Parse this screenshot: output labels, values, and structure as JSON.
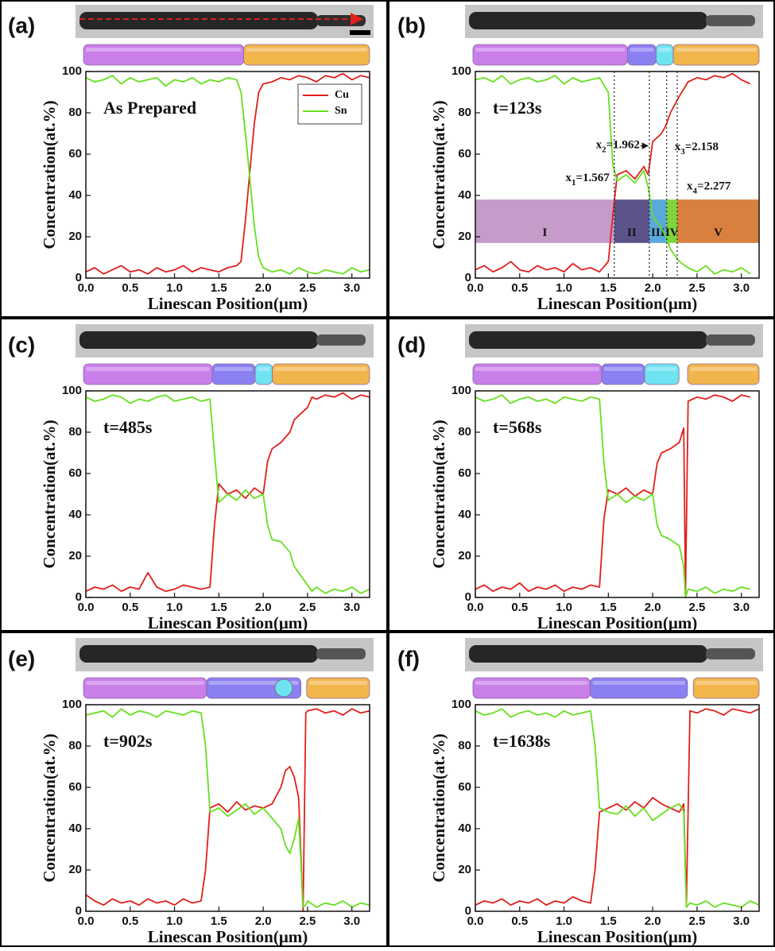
{
  "chart_data": [
    {
      "type": "line",
      "panel_label": "(a)",
      "annotation": "As Prepared",
      "xlabel": "Linescan Position(μm)",
      "ylabel": "Concentration(at.%)",
      "xlim": [
        0,
        3.2
      ],
      "ylim": [
        0,
        100
      ],
      "xticks": [
        {
          "value": 0,
          "label": "0.0"
        },
        0.5,
        {
          "value": 1,
          "label": "1.0"
        },
        1.5,
        {
          "value": 2,
          "label": "2.0"
        },
        2.5,
        {
          "value": 3,
          "label": "3.0"
        }
      ],
      "yticks": [
        0,
        20,
        40,
        60,
        80,
        100
      ],
      "legend": "upper right",
      "x": [
        0,
        0.1,
        0.2,
        0.3,
        0.4,
        0.5,
        0.6,
        0.7,
        0.8,
        0.9,
        1.0,
        1.1,
        1.2,
        1.3,
        1.4,
        1.5,
        1.6,
        1.7,
        1.75,
        1.8,
        1.85,
        1.9,
        1.95,
        2.0,
        2.1,
        2.2,
        2.3,
        2.4,
        2.5,
        2.6,
        2.7,
        2.8,
        2.9,
        3.0,
        3.1,
        3.2
      ],
      "series": [
        {
          "name": "Cu",
          "color": "#e0201b",
          "values": [
            3,
            5,
            2,
            4,
            6,
            3,
            4,
            2,
            5,
            3,
            4,
            6,
            3,
            5,
            4,
            3,
            5,
            6,
            8,
            28,
            52,
            75,
            90,
            94,
            95,
            97,
            96,
            98,
            97,
            95,
            98,
            97,
            99,
            96,
            98,
            97
          ]
        },
        {
          "name": "Sn",
          "color": "#66e01f",
          "values": [
            97,
            95,
            96,
            98,
            94,
            97,
            95,
            96,
            97,
            93,
            96,
            95,
            97,
            94,
            96,
            95,
            97,
            96,
            90,
            70,
            48,
            25,
            10,
            5,
            3,
            4,
            2,
            5,
            3,
            2,
            4,
            3,
            2,
            5,
            3,
            4
          ]
        }
      ]
    },
    {
      "type": "line",
      "panel_label": "(b)",
      "annotation": "t=123s",
      "xlabel": "Linescan Position(μm)",
      "ylabel": "Concentration(at.%)",
      "xlim": [
        0,
        3.2
      ],
      "ylim": [
        0,
        100
      ],
      "xticks": [
        {
          "value": 0,
          "label": "0.0"
        },
        0.5,
        {
          "value": 1,
          "label": "1.0"
        },
        1.5,
        {
          "value": 2,
          "label": "2.0"
        },
        2.5,
        {
          "value": 3,
          "label": "3.0"
        }
      ],
      "yticks": [
        0,
        20,
        40,
        60,
        80,
        100
      ],
      "x": [
        0,
        0.1,
        0.2,
        0.3,
        0.4,
        0.5,
        0.6,
        0.7,
        0.8,
        0.9,
        1.0,
        1.1,
        1.2,
        1.3,
        1.4,
        1.5,
        1.55,
        1.6,
        1.7,
        1.8,
        1.9,
        1.95,
        2.0,
        2.1,
        2.15,
        2.2,
        2.3,
        2.4,
        2.5,
        2.6,
        2.7,
        2.8,
        2.9,
        3.0,
        3.1
      ],
      "series": [
        {
          "color": "#e0201b",
          "values": [
            4,
            6,
            3,
            5,
            8,
            4,
            3,
            6,
            4,
            5,
            3,
            7,
            4,
            5,
            3,
            8,
            30,
            50,
            52,
            48,
            54,
            50,
            66,
            70,
            74,
            80,
            88,
            95,
            97,
            96,
            98,
            97,
            99,
            96,
            94
          ]
        },
        {
          "color": "#66e01f",
          "values": [
            96,
            97,
            95,
            98,
            94,
            96,
            97,
            95,
            96,
            98,
            94,
            97,
            95,
            96,
            97,
            90,
            55,
            47,
            50,
            46,
            52,
            44,
            30,
            24,
            20,
            14,
            8,
            5,
            3,
            6,
            2,
            4,
            3,
            5,
            2
          ]
        }
      ],
      "markers": [
        {
          "label": "x",
          "sub": "1",
          "value_label": "=1.567",
          "value": 1.567
        },
        {
          "label": "x",
          "sub": "2",
          "value_label": "=1.962",
          "value": 1.962
        },
        {
          "label": "x",
          "sub": "3",
          "value_label": "=2.158",
          "value": 2.158
        },
        {
          "label": "x",
          "sub": "4",
          "value_label": "=2.277",
          "value": 2.277
        }
      ],
      "regions": [
        {
          "label": "I",
          "color": "#c49bc9",
          "start": 0,
          "end": 1.567
        },
        {
          "label": "II",
          "color": "#5b5389",
          "start": 1.567,
          "end": 1.962
        },
        {
          "label": "III",
          "color": "#5aa9dc",
          "start": 1.962,
          "end": 2.158
        },
        {
          "label": "IV",
          "color": "#7ed63a",
          "start": 2.158,
          "end": 2.277
        },
        {
          "label": "V",
          "color": "#d8803f",
          "start": 2.277,
          "end": 3.2
        }
      ]
    },
    {
      "type": "line",
      "panel_label": "(c)",
      "annotation": "t=485s",
      "xlabel": "Linescan Position(μm)",
      "ylabel": "Concentration(at.%)",
      "xlim": [
        0,
        3.2
      ],
      "ylim": [
        0,
        100
      ],
      "xticks": [
        {
          "value": 0,
          "label": "0.0"
        },
        0.5,
        {
          "value": 1,
          "label": "1.0"
        },
        1.5,
        {
          "value": 2,
          "label": "2.0"
        },
        2.5,
        {
          "value": 3,
          "label": "3.0"
        }
      ],
      "yticks": [
        0,
        20,
        40,
        60,
        80,
        100
      ],
      "x": [
        0,
        0.1,
        0.2,
        0.3,
        0.4,
        0.5,
        0.6,
        0.7,
        0.8,
        0.9,
        1.0,
        1.1,
        1.2,
        1.3,
        1.4,
        1.45,
        1.5,
        1.6,
        1.7,
        1.8,
        1.9,
        2.0,
        2.05,
        2.1,
        2.2,
        2.3,
        2.35,
        2.4,
        2.5,
        2.55,
        2.6,
        2.7,
        2.8,
        2.9,
        3.0,
        3.1,
        3.2
      ],
      "series": [
        {
          "color": "#e0201b",
          "values": [
            3,
            5,
            4,
            6,
            3,
            5,
            4,
            12,
            5,
            3,
            4,
            6,
            5,
            4,
            5,
            35,
            55,
            50,
            52,
            48,
            53,
            50,
            66,
            72,
            75,
            80,
            86,
            88,
            92,
            97,
            96,
            98,
            97,
            99,
            96,
            98,
            97
          ]
        },
        {
          "color": "#66e01f",
          "values": [
            97,
            95,
            96,
            98,
            97,
            94,
            96,
            95,
            97,
            98,
            95,
            96,
            97,
            95,
            96,
            70,
            46,
            50,
            47,
            52,
            48,
            50,
            35,
            28,
            27,
            22,
            15,
            12,
            6,
            3,
            5,
            2,
            4,
            3,
            5,
            2,
            4
          ]
        }
      ]
    },
    {
      "type": "line",
      "panel_label": "(d)",
      "annotation": "t=568s",
      "xlabel": "Linescan Position(μm)",
      "ylabel": "Concentration(at.%)",
      "xlim": [
        0,
        3.2
      ],
      "ylim": [
        0,
        100
      ],
      "xticks": [
        {
          "value": 0,
          "label": "0.0"
        },
        0.5,
        {
          "value": 1,
          "label": "1.0"
        },
        1.5,
        {
          "value": 2,
          "label": "2.0"
        },
        2.5,
        {
          "value": 3,
          "label": "3.0"
        }
      ],
      "yticks": [
        0,
        20,
        40,
        60,
        80,
        100
      ],
      "x": [
        0,
        0.1,
        0.2,
        0.3,
        0.4,
        0.5,
        0.6,
        0.7,
        0.8,
        0.9,
        1.0,
        1.1,
        1.2,
        1.3,
        1.4,
        1.45,
        1.5,
        1.6,
        1.7,
        1.8,
        1.9,
        2.0,
        2.05,
        2.1,
        2.2,
        2.3,
        2.35,
        2.37,
        2.4,
        2.5,
        2.6,
        2.7,
        2.8,
        2.9,
        3.0,
        3.1
      ],
      "series": [
        {
          "color": "#e0201b",
          "values": [
            4,
            6,
            3,
            5,
            4,
            7,
            3,
            5,
            4,
            6,
            3,
            5,
            4,
            6,
            5,
            38,
            52,
            50,
            53,
            49,
            52,
            50,
            65,
            70,
            72,
            75,
            82,
            2,
            95,
            97,
            96,
            98,
            97,
            95,
            98,
            97
          ]
        },
        {
          "color": "#66e01f",
          "values": [
            97,
            95,
            96,
            98,
            94,
            96,
            97,
            95,
            96,
            94,
            97,
            96,
            95,
            97,
            96,
            65,
            47,
            50,
            46,
            49,
            47,
            50,
            35,
            30,
            28,
            25,
            15,
            0,
            4,
            3,
            5,
            2,
            4,
            3,
            5,
            4
          ]
        }
      ]
    },
    {
      "type": "line",
      "panel_label": "(e)",
      "annotation": "t=902s",
      "xlabel": "Linescan Position(μm)",
      "ylabel": "Concentration(at.%)",
      "xlim": [
        0,
        3.2
      ],
      "ylim": [
        0,
        100
      ],
      "xticks": [
        {
          "value": 0,
          "label": "0.0"
        },
        0.5,
        {
          "value": 1,
          "label": "1.0"
        },
        1.5,
        {
          "value": 2,
          "label": "2.0"
        },
        2.5,
        {
          "value": 3,
          "label": "3.0"
        }
      ],
      "yticks": [
        0,
        20,
        40,
        60,
        80,
        100
      ],
      "x": [
        0,
        0.1,
        0.2,
        0.3,
        0.4,
        0.5,
        0.6,
        0.7,
        0.8,
        0.9,
        1.0,
        1.1,
        1.2,
        1.3,
        1.35,
        1.4,
        1.5,
        1.6,
        1.7,
        1.8,
        1.9,
        2.0,
        2.1,
        2.2,
        2.25,
        2.3,
        2.35,
        2.4,
        2.45,
        2.48,
        2.5,
        2.6,
        2.7,
        2.8,
        2.9,
        3.0,
        3.1,
        3.2
      ],
      "series": [
        {
          "color": "#e0201b",
          "values": [
            8,
            5,
            3,
            6,
            4,
            5,
            3,
            6,
            4,
            5,
            3,
            6,
            4,
            5,
            20,
            50,
            52,
            48,
            53,
            49,
            51,
            50,
            52,
            60,
            68,
            70,
            65,
            55,
            0,
            96,
            97,
            98,
            96,
            97,
            95,
            98,
            96,
            97
          ]
        },
        {
          "color": "#66e01f",
          "values": [
            95,
            96,
            97,
            94,
            98,
            95,
            97,
            96,
            94,
            97,
            96,
            95,
            97,
            96,
            80,
            48,
            50,
            46,
            49,
            52,
            47,
            50,
            45,
            40,
            32,
            28,
            35,
            45,
            2,
            3,
            5,
            2,
            4,
            3,
            5,
            2,
            4,
            3
          ]
        }
      ]
    },
    {
      "type": "line",
      "panel_label": "(f)",
      "annotation": "t=1638s",
      "xlabel": "Linescan Position(μm)",
      "ylabel": "Concentration(at.%)",
      "xlim": [
        0,
        3.2
      ],
      "ylim": [
        0,
        100
      ],
      "xticks": [
        {
          "value": 0,
          "label": "0.0"
        },
        0.5,
        {
          "value": 1,
          "label": "1.0"
        },
        1.5,
        {
          "value": 2,
          "label": "2.0"
        },
        2.5,
        {
          "value": 3,
          "label": "3.0"
        }
      ],
      "yticks": [
        0,
        20,
        40,
        60,
        80,
        100
      ],
      "x": [
        0,
        0.1,
        0.2,
        0.3,
        0.4,
        0.5,
        0.6,
        0.7,
        0.8,
        0.9,
        1.0,
        1.1,
        1.2,
        1.3,
        1.35,
        1.4,
        1.5,
        1.6,
        1.7,
        1.8,
        1.9,
        2.0,
        2.1,
        2.2,
        2.3,
        2.35,
        2.38,
        2.42,
        2.5,
        2.6,
        2.7,
        2.8,
        2.9,
        3.0,
        3.1,
        3.2
      ],
      "series": [
        {
          "color": "#e0201b",
          "values": [
            3,
            5,
            4,
            6,
            3,
            5,
            4,
            6,
            3,
            5,
            4,
            7,
            5,
            4,
            20,
            48,
            50,
            52,
            49,
            53,
            50,
            55,
            52,
            50,
            48,
            52,
            3,
            97,
            96,
            98,
            97,
            95,
            98,
            97,
            96,
            98
          ]
        },
        {
          "color": "#66e01f",
          "values": [
            97,
            95,
            96,
            98,
            94,
            96,
            97,
            95,
            96,
            94,
            97,
            95,
            96,
            97,
            80,
            50,
            48,
            47,
            51,
            46,
            50,
            44,
            47,
            50,
            52,
            48,
            2,
            4,
            3,
            5,
            2,
            4,
            3,
            2,
            5,
            3
          ]
        }
      ]
    }
  ]
}
